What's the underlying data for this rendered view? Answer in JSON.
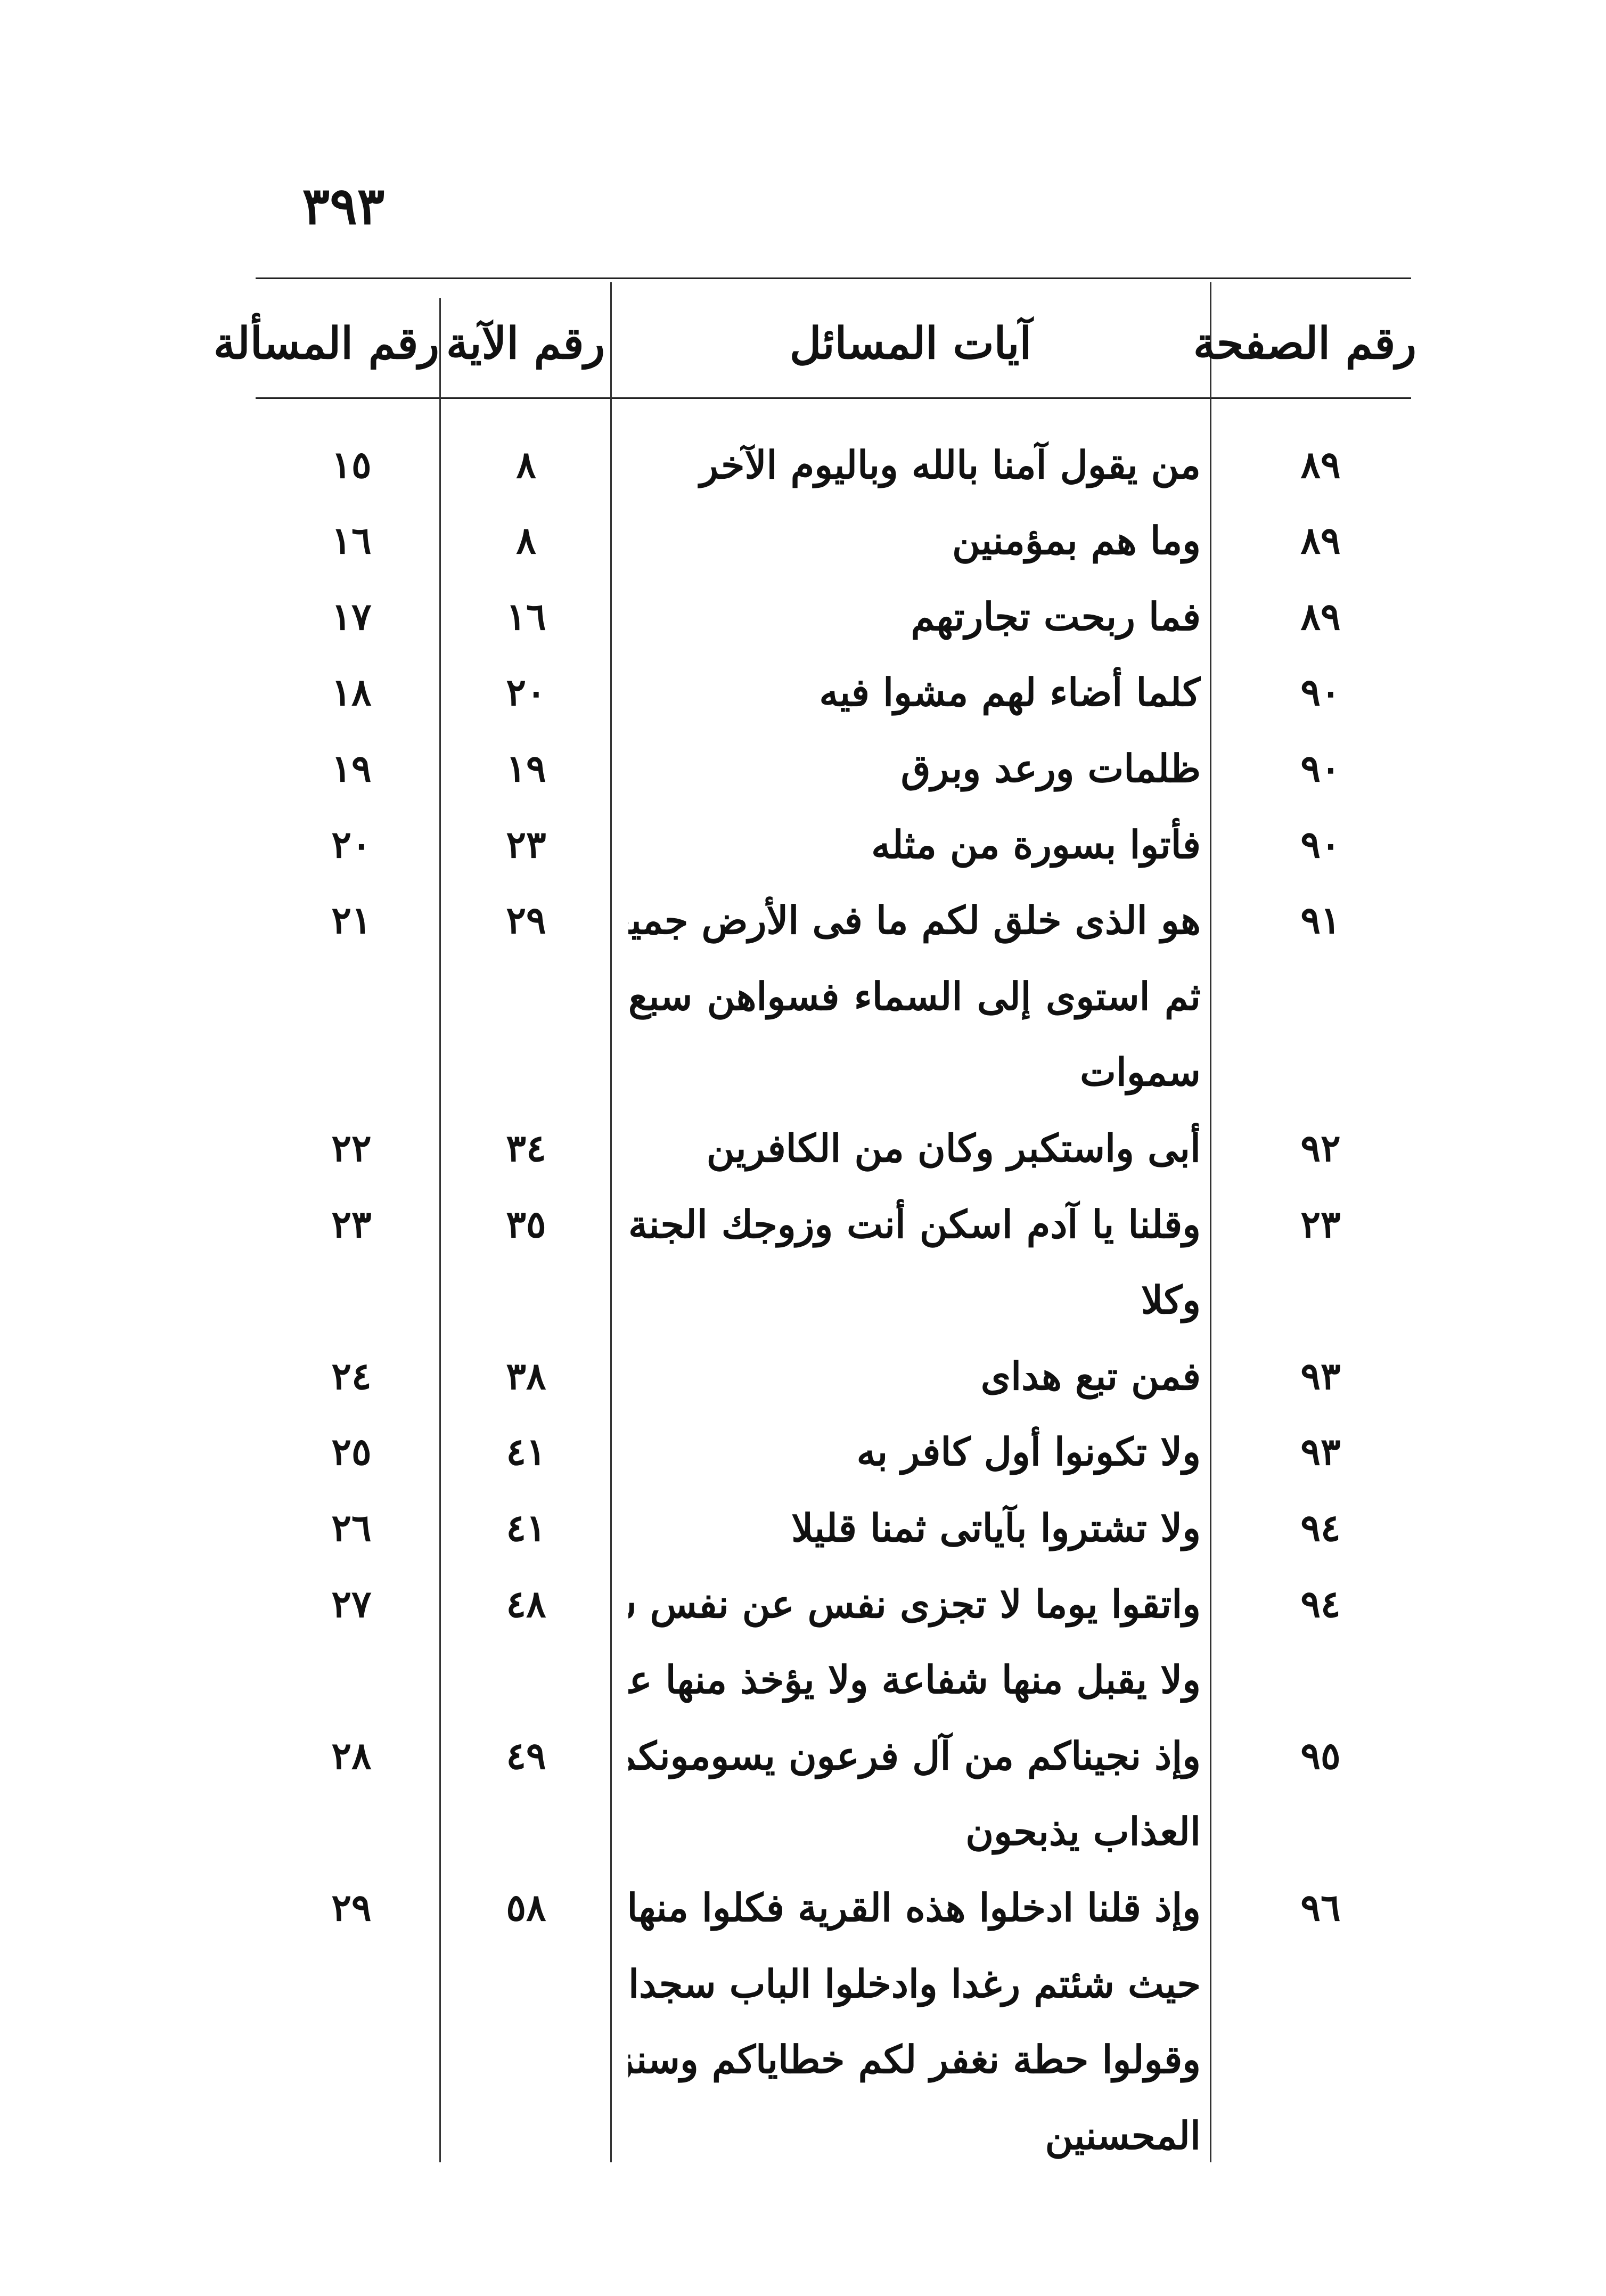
{
  "page_number": "٣٩٣",
  "table": {
    "headers": {
      "page": "رقم الصفحة",
      "verses": "آيات المسائل",
      "aya": "رقم الآية",
      "masala": "رقم المسألة"
    },
    "rows": [
      {
        "page": "٨٩",
        "lines": [
          "من يقول آمنا بالله وباليوم الآخر"
        ],
        "aya": "٨",
        "masala": "١٥"
      },
      {
        "page": "٨٩",
        "lines": [
          "وما هم بمؤمنين"
        ],
        "aya": "٨",
        "masala": "١٦"
      },
      {
        "page": "٨٩",
        "lines": [
          "فما ربحت تجارتهم"
        ],
        "aya": "١٦",
        "masala": "١٧"
      },
      {
        "page": "٩٠",
        "lines": [
          "كلما أضاء لهم مشوا فيه"
        ],
        "aya": "٢٠",
        "masala": "١٨"
      },
      {
        "page": "٩٠",
        "lines": [
          "ظلمات ورعد وبرق"
        ],
        "aya": "١٩",
        "masala": "١٩"
      },
      {
        "page": "٩٠",
        "lines": [
          "فأتوا بسورة من مثله"
        ],
        "aya": "٢٣",
        "masala": "٢٠"
      },
      {
        "page": "٩١",
        "lines": [
          "هو الذى خلق لكم ما فى الأرض جميعا",
          "ثم استوى إلى السماء فسواهن سبع",
          "سموات"
        ],
        "aya": "٢٩",
        "masala": "٢١"
      },
      {
        "page": "٩٢",
        "lines": [
          "أبى واستكبر وكان من الكافرين"
        ],
        "aya": "٣٤",
        "masala": "٢٢"
      },
      {
        "page": "٢٣",
        "lines": [
          "وقلنا يا آدم اسكن أنت وزوجك الجنة",
          "وكلا"
        ],
        "aya": "٣٥",
        "masala": "٢٣"
      },
      {
        "page": "٩٣",
        "lines": [
          "فمن تبع هداى"
        ],
        "aya": "٣٨",
        "masala": "٢٤"
      },
      {
        "page": "٩٣",
        "lines": [
          "ولا تكونوا أول كافر به"
        ],
        "aya": "٤١",
        "masala": "٢٥"
      },
      {
        "page": "٩٤",
        "lines": [
          "ولا تشتروا بآياتى ثمنا قليلا"
        ],
        "aya": "٤١",
        "masala": "٢٦"
      },
      {
        "page": "٩٤",
        "lines": [
          "واتقوا يوما لا تجزى نفس عن نفس شيئا",
          "ولا يقبل منها شفاعة ولا يؤخذ منها عدل"
        ],
        "aya": "٤٨",
        "masala": "٢٧"
      },
      {
        "page": "٩٥",
        "lines": [
          "وإذ نجيناكم من آل فرعون يسومونكم سوء",
          "العذاب يذبحون"
        ],
        "aya": "٤٩",
        "masala": "٢٨"
      },
      {
        "page": "٩٦",
        "lines": [
          "وإذ قلنا ادخلوا هذه القرية فكلوا منها",
          "حيث شئتم رغدا وادخلوا الباب سجدا",
          "وقولوا حطة نغفر لكم خطاياكم وسنزيد",
          "المحسنين"
        ],
        "aya": "٥٨",
        "masala": "٢٩"
      }
    ]
  }
}
